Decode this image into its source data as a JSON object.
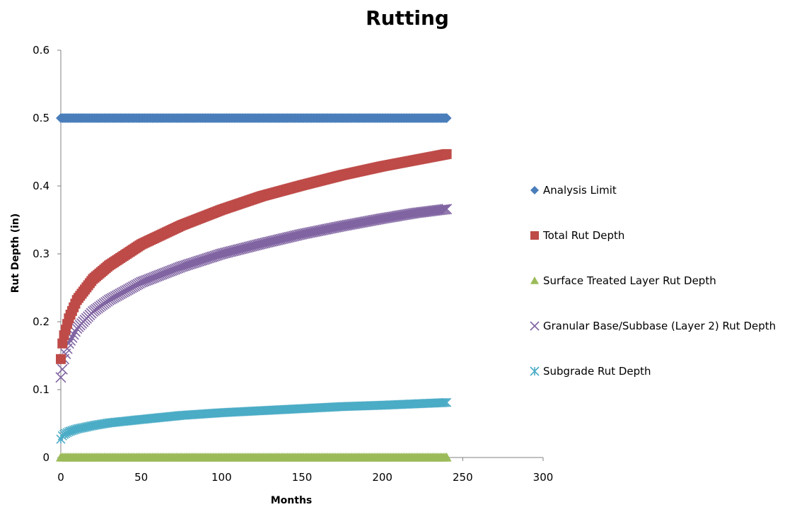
{
  "chart_data": {
    "type": "scatter",
    "title": "Rutting",
    "xlabel": "Months",
    "ylabel": "Rut Depth (in)",
    "xlim": [
      0,
      300
    ],
    "ylim": [
      0,
      0.6
    ],
    "x_ticks": [
      "0",
      "50",
      "100",
      "150",
      "200",
      "250",
      "300"
    ],
    "y_ticks": [
      "0",
      "0.1",
      "0.2",
      "0.3",
      "0.4",
      "0.5",
      "0.6"
    ],
    "grid": false,
    "legend_position": "right",
    "x_range_months": [
      0,
      240
    ],
    "series": [
      {
        "name": "Analysis Limit",
        "marker": "diamond",
        "color": "#4A7EBB",
        "x": [
          0,
          240
        ],
        "values": [
          0.5,
          0.5
        ]
      },
      {
        "name": "Total Rut Depth",
        "marker": "square",
        "color": "#BE4B48",
        "x": [
          0,
          1,
          2,
          5,
          10,
          20,
          30,
          50,
          75,
          100,
          125,
          150,
          175,
          200,
          220,
          240
        ],
        "values": [
          0.145,
          0.168,
          0.18,
          0.205,
          0.232,
          0.263,
          0.283,
          0.314,
          0.342,
          0.365,
          0.385,
          0.401,
          0.416,
          0.429,
          0.438,
          0.447
        ]
      },
      {
        "name": "Surface Treated Layer Rut Depth",
        "marker": "triangle",
        "color": "#9BBB59",
        "x": [
          0,
          240
        ],
        "values": [
          0.0,
          0.0
        ]
      },
      {
        "name": "Granular Base/Subbase (Layer 2) Rut Depth",
        "marker": "x",
        "color": "#8064A2",
        "x": [
          0,
          1,
          2,
          5,
          10,
          20,
          30,
          50,
          75,
          100,
          125,
          150,
          175,
          200,
          220,
          240
        ],
        "values": [
          0.118,
          0.13,
          0.145,
          0.168,
          0.19,
          0.215,
          0.232,
          0.258,
          0.281,
          0.3,
          0.315,
          0.329,
          0.341,
          0.352,
          0.36,
          0.366
        ]
      },
      {
        "name": "Subgrade Rut Depth",
        "marker": "asterisk",
        "color": "#4BACC6",
        "x": [
          0,
          1,
          2,
          5,
          10,
          20,
          30,
          50,
          75,
          100,
          125,
          150,
          175,
          200,
          220,
          240
        ],
        "values": [
          0.027,
          0.032,
          0.034,
          0.038,
          0.042,
          0.047,
          0.051,
          0.056,
          0.062,
          0.066,
          0.069,
          0.072,
          0.075,
          0.077,
          0.079,
          0.081
        ]
      }
    ]
  }
}
